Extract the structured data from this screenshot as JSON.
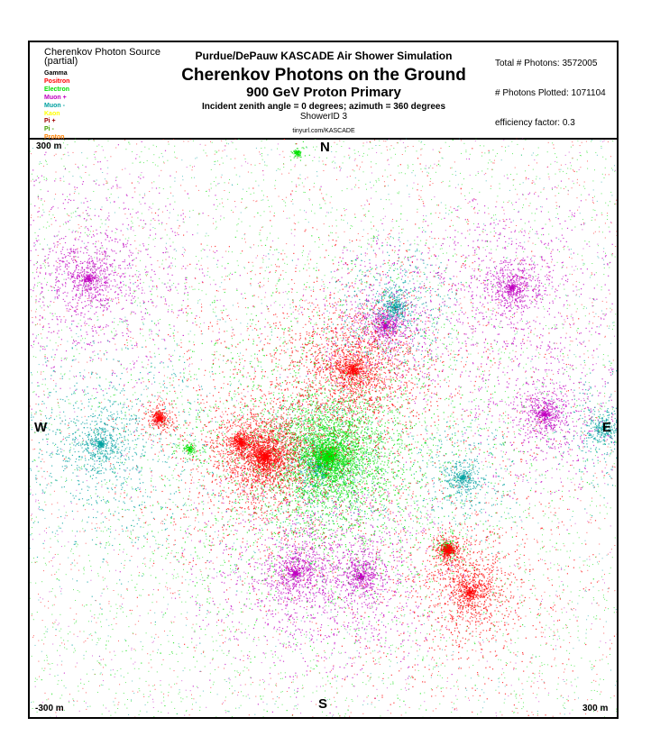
{
  "legend": {
    "title": "Cherenkov Photon Source",
    "subtitle": "(partial)",
    "items": [
      {
        "label": "Gamma",
        "color": "#000000"
      },
      {
        "label": "Positron",
        "color": "#ff0000"
      },
      {
        "label": "Electron",
        "color": "#00e000"
      },
      {
        "label": "Muon +",
        "color": "#c000c0"
      },
      {
        "label": "Muon -",
        "color": "#00a0a0"
      },
      {
        "label": "Kaon",
        "color": "#ffff00"
      },
      {
        "label": "Pi +",
        "color": "#a00000"
      },
      {
        "label": "Pi -",
        "color": "#40a000"
      },
      {
        "label": "Proton",
        "color": "#ff8000"
      }
    ]
  },
  "header": {
    "supertitle": "Purdue/DePauw KASCADE Air Shower Simulation",
    "title": "Cherenkov Photons on the Ground",
    "subtitle": "900 GeV Proton Primary",
    "incident": "Incident zenith angle =  0 degrees;  azimuth =  360 degrees",
    "shower_id": "ShowerID 3",
    "url": "tinyurl.com/KASCADE"
  },
  "stats": {
    "total": "Total # Photons: 3572005",
    "plotted": "# Photons Plotted: 1071104",
    "efficiency": "efficiency factor: 0.3"
  },
  "plot_labels": {
    "top_left": "300 m",
    "north": "N",
    "west": "W",
    "east": "E",
    "south": "S",
    "bottom_left": "-300 m",
    "bottom_right": "300 m"
  },
  "chart_data": {
    "type": "scatter",
    "xlim": [
      -300,
      300
    ],
    "ylim": [
      -300,
      300
    ],
    "grid": false,
    "legend_placement": "top-left",
    "clusters": [
      {
        "source": "Muon +",
        "x": -240,
        "y": 154,
        "spread": 85,
        "ring": 100,
        "n": 1500
      },
      {
        "source": "Muon -",
        "x": -228,
        "y": -17,
        "spread": 80,
        "ring": 90,
        "n": 1300
      },
      {
        "source": "Muon +",
        "x": 63,
        "y": 106,
        "spread": 45,
        "ring": 65,
        "n": 1100
      },
      {
        "source": "Muon -",
        "x": 73,
        "y": 125,
        "spread": 35,
        "ring": 55,
        "n": 700
      },
      {
        "source": "Muon +",
        "x": 193,
        "y": 145,
        "spread": 55,
        "ring": 85,
        "n": 1200
      },
      {
        "source": "Muon +",
        "x": 226,
        "y": 14,
        "spread": 45,
        "ring": 70,
        "n": 1000
      },
      {
        "source": "Muon -",
        "x": 287,
        "y": 0,
        "spread": 35,
        "ring": 50,
        "n": 500
      },
      {
        "source": "Muon +",
        "x": -29,
        "y": -151,
        "spread": 60,
        "ring": 90,
        "n": 1300
      },
      {
        "source": "Muon +",
        "x": 38,
        "y": -154,
        "spread": 55,
        "ring": 80,
        "n": 1100
      },
      {
        "source": "Muon -",
        "x": -5,
        "y": -40,
        "spread": 55,
        "ring": 60,
        "n": 900
      },
      {
        "source": "Muon -",
        "x": 142,
        "y": -52,
        "spread": 35,
        "ring": 45,
        "n": 600
      },
      {
        "source": "Electron",
        "x": 5,
        "y": -30,
        "spread": 110,
        "ring": 0,
        "n": 5200
      },
      {
        "source": "Electron",
        "x": -27,
        "y": 285,
        "spread": 6,
        "ring": 0,
        "n": 120
      },
      {
        "source": "Electron",
        "x": 126,
        "y": -124,
        "spread": 10,
        "ring": 0,
        "n": 200
      },
      {
        "source": "Electron",
        "x": -137,
        "y": -22,
        "spread": 10,
        "ring": 0,
        "n": 150
      },
      {
        "source": "Positron",
        "x": -60,
        "y": -30,
        "spread": 75,
        "ring": 0,
        "n": 3000
      },
      {
        "source": "Positron",
        "x": -168,
        "y": 10,
        "spread": 12,
        "ring": 0,
        "n": 400
      },
      {
        "source": "Positron",
        "x": 127,
        "y": -127,
        "spread": 14,
        "ring": 0,
        "n": 500
      },
      {
        "source": "Positron",
        "x": -85,
        "y": -15,
        "spread": 18,
        "ring": 0,
        "n": 500
      },
      {
        "source": "Positron",
        "x": 30,
        "y": 60,
        "spread": 120,
        "ring": 0,
        "n": 2500
      },
      {
        "source": "Positron",
        "x": 150,
        "y": -170,
        "spread": 80,
        "ring": 0,
        "n": 1500
      }
    ]
  }
}
